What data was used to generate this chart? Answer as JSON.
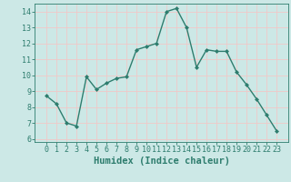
{
  "x": [
    0,
    1,
    2,
    3,
    4,
    5,
    6,
    7,
    8,
    9,
    10,
    11,
    12,
    13,
    14,
    15,
    16,
    17,
    18,
    19,
    20,
    21,
    22,
    23
  ],
  "y": [
    8.7,
    8.2,
    7.0,
    6.8,
    9.9,
    9.1,
    9.5,
    9.8,
    9.9,
    11.6,
    11.8,
    12.0,
    14.0,
    14.2,
    13.0,
    10.5,
    11.6,
    11.5,
    11.5,
    10.2,
    9.4,
    8.5,
    7.5,
    6.5
  ],
  "xlabel": "Humidex (Indice chaleur)",
  "ylim": [
    5.8,
    14.5
  ],
  "yticks": [
    6,
    7,
    8,
    9,
    10,
    11,
    12,
    13,
    14
  ],
  "xticks": [
    0,
    1,
    2,
    3,
    4,
    5,
    6,
    7,
    8,
    9,
    10,
    11,
    12,
    13,
    14,
    15,
    16,
    17,
    18,
    19,
    20,
    21,
    22,
    23
  ],
  "line_color": "#2e7d6e",
  "marker": "D",
  "marker_size": 2.0,
  "bg_color": "#cce8e6",
  "grid_color": "#f0c8c8",
  "tick_color": "#2e7d6e",
  "label_color": "#2e7d6e",
  "xlabel_fontsize": 7.5,
  "tick_fontsize": 6.0,
  "linewidth": 1.0
}
